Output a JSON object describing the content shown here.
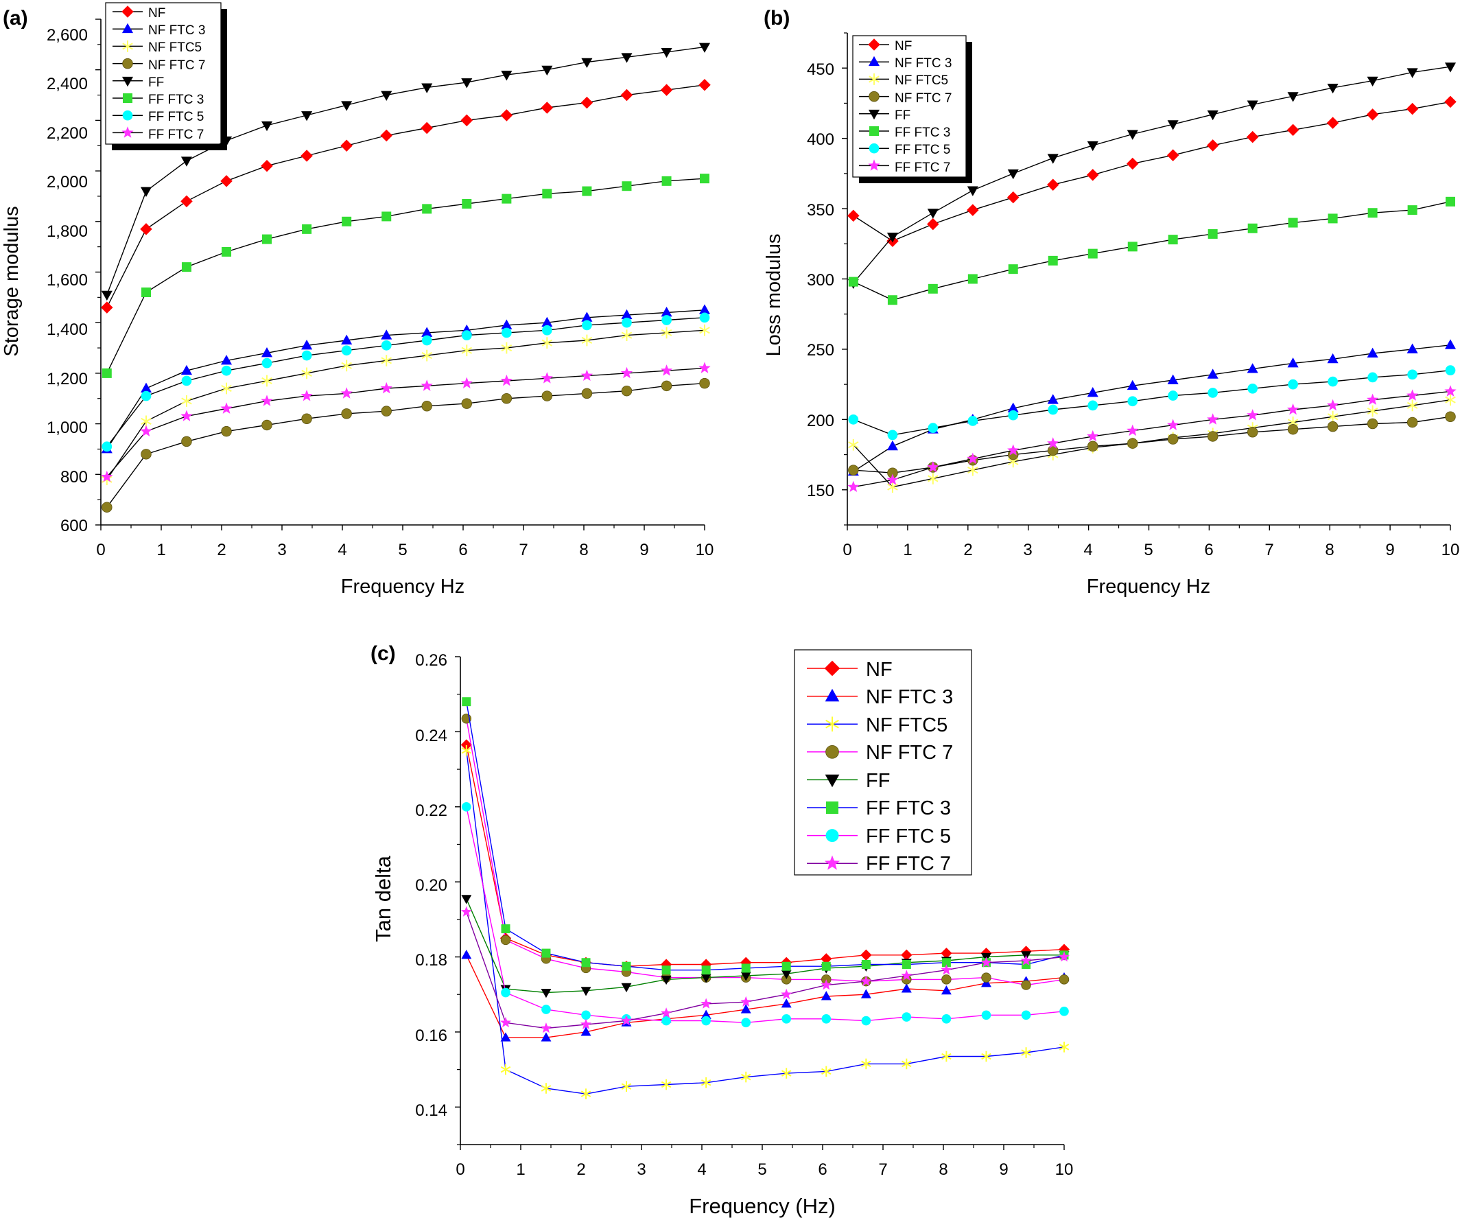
{
  "chart_data": [
    {
      "panel_label": "(a)",
      "type": "line",
      "xlabel": "Frequency Hz",
      "ylabel": "Storage modulus",
      "xlim": [
        0,
        10
      ],
      "ylim": [
        600,
        2600
      ],
      "xticks": [
        "0",
        "1",
        "2",
        "3",
        "4",
        "5",
        "6",
        "7",
        "8",
        "9",
        "10"
      ],
      "yticks": [
        "600",
        "800",
        "1,000",
        "1,200",
        "1,400",
        "1,600",
        "1,800",
        "2,000",
        "2,200",
        "2,400",
        "2,600"
      ],
      "grid": false,
      "legend_position": "top-left",
      "x": [
        0.1,
        0.75,
        1.42,
        2.08,
        2.75,
        3.41,
        4.07,
        4.73,
        5.4,
        6.06,
        6.72,
        7.39,
        8.05,
        8.71,
        9.37,
        10.0
      ],
      "series": [
        {
          "name": "NF",
          "marker": "diamond",
          "color": "#ff0000",
          "values": [
            1460,
            1770,
            1880,
            1960,
            2020,
            2060,
            2100,
            2140,
            2170,
            2200,
            2220,
            2250,
            2270,
            2300,
            2320,
            2340
          ]
        },
        {
          "name": "NF FTC 3",
          "marker": "triangle-up",
          "color": "#0000ff",
          "values": [
            900,
            1140,
            1210,
            1250,
            1280,
            1310,
            1330,
            1350,
            1360,
            1370,
            1390,
            1400,
            1420,
            1430,
            1440,
            1450
          ]
        },
        {
          "name": "NF FTC5",
          "marker": "asterisk",
          "color": "#ffff66",
          "values": [
            780,
            1010,
            1090,
            1140,
            1170,
            1200,
            1230,
            1250,
            1270,
            1290,
            1300,
            1320,
            1330,
            1350,
            1360,
            1370
          ]
        },
        {
          "name": "NF FTC 7",
          "marker": "sphere",
          "color": "#8b7d1e",
          "values": [
            670,
            880,
            930,
            970,
            995,
            1020,
            1040,
            1050,
            1070,
            1080,
            1100,
            1110,
            1120,
            1130,
            1150,
            1160
          ]
        },
        {
          "name": "FF",
          "marker": "triangle-down",
          "color": "#000000",
          "values": [
            1510,
            1920,
            2040,
            2120,
            2180,
            2220,
            2260,
            2300,
            2330,
            2350,
            2380,
            2400,
            2430,
            2450,
            2470,
            2490
          ]
        },
        {
          "name": "FF FTC 3",
          "marker": "square",
          "color": "#33dd33",
          "values": [
            1200,
            1520,
            1620,
            1680,
            1730,
            1770,
            1800,
            1820,
            1850,
            1870,
            1890,
            1910,
            1920,
            1940,
            1960,
            1970
          ]
        },
        {
          "name": "FF FTC 5",
          "marker": "circle",
          "color": "#00ffff",
          "values": [
            910,
            1110,
            1170,
            1210,
            1240,
            1270,
            1290,
            1310,
            1330,
            1350,
            1360,
            1370,
            1390,
            1400,
            1410,
            1420
          ]
        },
        {
          "name": "FF FTC 7",
          "marker": "star",
          "color": "#ff33ff",
          "values": [
            790,
            970,
            1030,
            1060,
            1090,
            1110,
            1120,
            1140,
            1150,
            1160,
            1170,
            1180,
            1190,
            1200,
            1210,
            1220
          ]
        }
      ]
    },
    {
      "panel_label": "(b)",
      "type": "line",
      "xlabel": "Frequency Hz",
      "ylabel": "Loss modulus",
      "xlim": [
        0,
        10
      ],
      "ylim": [
        125,
        475
      ],
      "xticks": [
        "0",
        "1",
        "2",
        "3",
        "4",
        "5",
        "6",
        "7",
        "8",
        "9",
        "10"
      ],
      "yticks": [
        "150",
        "200",
        "250",
        "300",
        "350",
        "400",
        "450"
      ],
      "grid": false,
      "legend_position": "top-left",
      "x": [
        0.1,
        0.75,
        1.42,
        2.08,
        2.75,
        3.41,
        4.07,
        4.73,
        5.4,
        6.06,
        6.72,
        7.39,
        8.05,
        8.71,
        9.37,
        10.0
      ],
      "series": [
        {
          "name": "NF",
          "marker": "diamond",
          "color": "#ff0000",
          "values": [
            345,
            327,
            339,
            349,
            358,
            367,
            374,
            382,
            388,
            395,
            401,
            406,
            411,
            417,
            421,
            426
          ]
        },
        {
          "name": "NF FTC 3",
          "marker": "triangle-up",
          "color": "#0000ff",
          "values": [
            163,
            181,
            193,
            200,
            208,
            214,
            219,
            224,
            228,
            232,
            236,
            240,
            243,
            247,
            250,
            253
          ]
        },
        {
          "name": "NF FTC5",
          "marker": "asterisk",
          "color": "#ffff66",
          "values": [
            182,
            152,
            158,
            164,
            170,
            175,
            180,
            183,
            187,
            190,
            194,
            198,
            202,
            206,
            210,
            214
          ]
        },
        {
          "name": "NF FTC 7",
          "marker": "sphere",
          "color": "#8b7d1e",
          "values": [
            164,
            162,
            166,
            171,
            175,
            178,
            181,
            183,
            186,
            188,
            191,
            193,
            195,
            197,
            198,
            202
          ]
        },
        {
          "name": "FF",
          "marker": "triangle-down",
          "color": "#000000",
          "values": [
            297,
            330,
            347,
            363,
            375,
            386,
            395,
            403,
            410,
            417,
            424,
            430,
            436,
            441,
            447,
            451
          ]
        },
        {
          "name": "FF FTC 3",
          "marker": "square",
          "color": "#33dd33",
          "values": [
            298,
            285,
            293,
            300,
            307,
            313,
            318,
            323,
            328,
            332,
            336,
            340,
            343,
            347,
            349,
            355
          ]
        },
        {
          "name": "FF FTC 5",
          "marker": "circle",
          "color": "#00ffff",
          "values": [
            200,
            189,
            194,
            199,
            203,
            207,
            210,
            213,
            217,
            219,
            222,
            225,
            227,
            230,
            232,
            235
          ]
        },
        {
          "name": "FF FTC 7",
          "marker": "star",
          "color": "#ff33ff",
          "values": [
            152,
            157,
            166,
            172,
            178,
            183,
            188,
            192,
            196,
            200,
            203,
            207,
            210,
            214,
            217,
            220
          ]
        }
      ]
    },
    {
      "panel_label": "(c)",
      "type": "line",
      "xlabel": "Frequency (Hz)",
      "ylabel": "Tan delta",
      "xlim": [
        0,
        10
      ],
      "ylim": [
        0.13,
        0.26
      ],
      "xticks": [
        "0",
        "1",
        "2",
        "3",
        "4",
        "5",
        "6",
        "7",
        "8",
        "9",
        "10"
      ],
      "yticks": [
        "0.14",
        "0.16",
        "0.18",
        "0.20",
        "0.22",
        "0.24",
        "0.26"
      ],
      "grid": false,
      "legend_position": "top-right",
      "x": [
        0.1,
        0.75,
        1.42,
        2.08,
        2.75,
        3.41,
        4.07,
        4.73,
        5.4,
        6.06,
        6.72,
        7.39,
        8.05,
        8.71,
        9.37,
        10.0
      ],
      "series": [
        {
          "name": "NF",
          "marker": "diamond",
          "color": "#ff0000",
          "line_color": "#ff0000",
          "values": [
            0.2365,
            0.185,
            0.1805,
            0.1785,
            0.1775,
            0.178,
            0.178,
            0.1785,
            0.1785,
            0.1795,
            0.1805,
            0.1805,
            0.181,
            0.181,
            0.1815,
            0.182
          ]
        },
        {
          "name": "NF FTC 3",
          "marker": "triangle-up",
          "color": "#0000ff",
          "line_color": "#ff0000",
          "values": [
            0.1805,
            0.1585,
            0.1585,
            0.16,
            0.1625,
            0.1635,
            0.1645,
            0.166,
            0.1675,
            0.1695,
            0.17,
            0.1715,
            0.171,
            0.173,
            0.1735,
            0.1745
          ]
        },
        {
          "name": "NF FTC5",
          "marker": "asterisk",
          "color": "#ffff33",
          "line_color": "#0000ff",
          "values": [
            0.235,
            0.15,
            0.145,
            0.1435,
            0.1455,
            0.146,
            0.1465,
            0.148,
            0.149,
            0.1495,
            0.1515,
            0.1515,
            0.1535,
            0.1535,
            0.1545,
            0.156
          ]
        },
        {
          "name": "NF FTC 7",
          "marker": "sphere",
          "color": "#8b7d1e",
          "line_color": "#ff00ff",
          "values": [
            0.2435,
            0.1845,
            0.1795,
            0.177,
            0.176,
            0.1745,
            0.1745,
            0.1745,
            0.174,
            0.174,
            0.1735,
            0.174,
            0.174,
            0.1745,
            0.1725,
            0.174
          ]
        },
        {
          "name": "FF",
          "marker": "triangle-down",
          "color": "#000000",
          "line_color": "#008000",
          "values": [
            0.1955,
            0.1715,
            0.1705,
            0.171,
            0.172,
            0.174,
            0.1745,
            0.175,
            0.1755,
            0.177,
            0.1775,
            0.1785,
            0.179,
            0.18,
            0.1805,
            0.1805
          ]
        },
        {
          "name": "FF FTC 3",
          "marker": "square",
          "color": "#33dd33",
          "line_color": "#0000ff",
          "values": [
            0.248,
            0.1875,
            0.181,
            0.1785,
            0.1775,
            0.1765,
            0.1765,
            0.177,
            0.1775,
            0.1775,
            0.178,
            0.178,
            0.1785,
            0.1785,
            0.178,
            0.1805
          ]
        },
        {
          "name": "FF FTC 5",
          "marker": "circle",
          "color": "#00ffff",
          "line_color": "#ff00ff",
          "values": [
            0.22,
            0.1705,
            0.166,
            0.1645,
            0.1635,
            0.163,
            0.163,
            0.1625,
            0.1635,
            0.1635,
            0.163,
            0.164,
            0.1635,
            0.1645,
            0.1645,
            0.1655
          ]
        },
        {
          "name": "FF FTC 7",
          "marker": "star",
          "color": "#ff33ff",
          "line_color": "#8000a0",
          "values": [
            0.192,
            0.1625,
            0.161,
            0.162,
            0.163,
            0.165,
            0.1675,
            0.168,
            0.17,
            0.1725,
            0.1735,
            0.175,
            0.1765,
            0.1785,
            0.179,
            0.18
          ]
        }
      ]
    }
  ]
}
